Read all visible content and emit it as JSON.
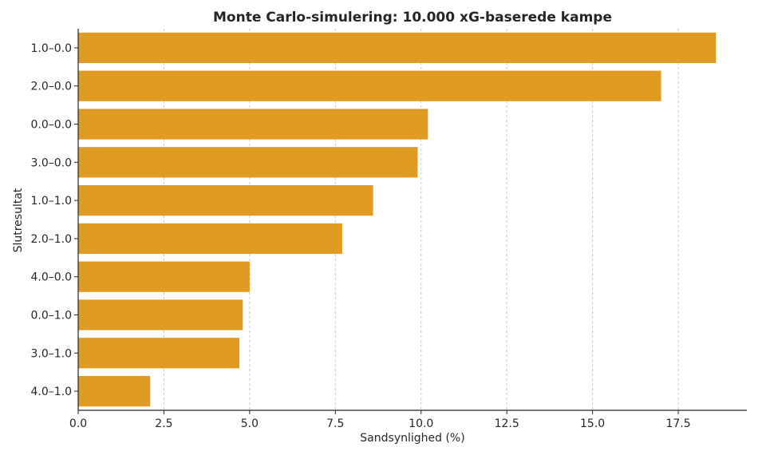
{
  "chart_data": {
    "type": "bar",
    "orientation": "horizontal",
    "title": "Monte Carlo-simulering: 10.000 xG-baserede kampe",
    "xlabel": "Sandsynlighed (%)",
    "ylabel": "Slutresultat",
    "categories": [
      "1.0–0.0",
      "2.0–0.0",
      "0.0–0.0",
      "3.0–0.0",
      "1.0–1.0",
      "2.0–1.0",
      "4.0–0.0",
      "0.0–1.0",
      "3.0–1.0",
      "4.0–1.0"
    ],
    "values": [
      18.6,
      17.0,
      10.2,
      9.9,
      8.6,
      7.7,
      5.0,
      4.8,
      4.7,
      2.1
    ],
    "xlim": [
      0,
      19.5
    ],
    "xticks": [
      "0.0",
      "2.5",
      "5.0",
      "7.5",
      "10.0",
      "12.5",
      "15.0",
      "17.5"
    ],
    "grid": "vertical dashed",
    "bar_color": "#e09c22"
  }
}
